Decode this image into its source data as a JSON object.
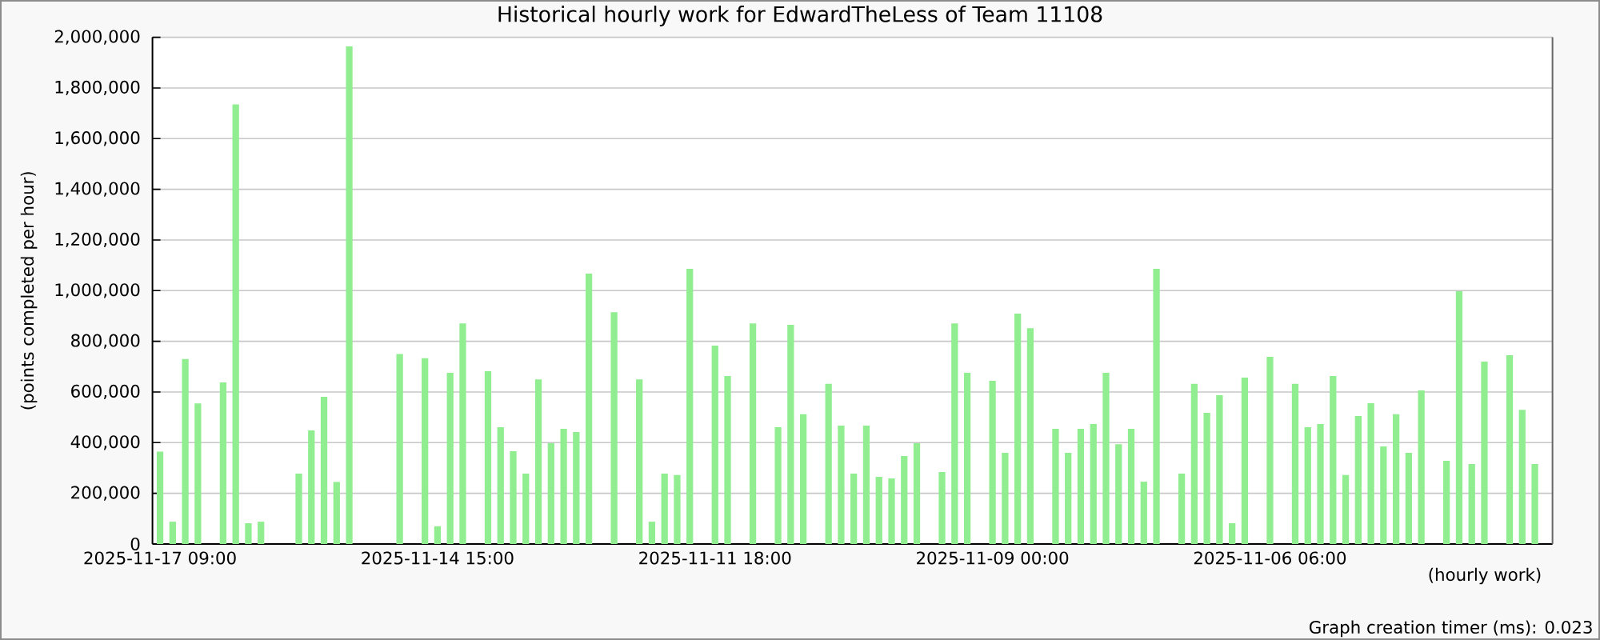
{
  "chart_data": {
    "type": "bar",
    "title": "Historical hourly work for EdwardTheLess of Team 11108",
    "xlabel": "(hourly work)",
    "ylabel": "(points completed per hour)",
    "annotations": [
      "Graph creation timer (ms): 0.023"
    ],
    "categories": [
      "2025-11-17 09:00",
      null,
      null,
      null,
      null,
      null,
      null,
      null,
      null,
      null,
      null,
      null,
      null,
      null,
      null,
      null,
      null,
      null,
      null,
      null,
      null,
      null,
      "2025-11-14 15:00",
      null,
      null,
      null,
      null,
      null,
      null,
      null,
      null,
      null,
      null,
      null,
      null,
      null,
      null,
      null,
      null,
      null,
      null,
      null,
      null,
      null,
      "2025-11-11 18:00",
      null,
      null,
      null,
      null,
      null,
      null,
      null,
      null,
      null,
      null,
      null,
      null,
      null,
      null,
      null,
      null,
      null,
      null,
      null,
      null,
      null,
      "2025-11-09 00:00",
      null,
      null,
      null,
      null,
      null,
      null,
      null,
      null,
      null,
      null,
      null,
      null,
      null,
      null,
      null,
      null,
      null,
      null,
      null,
      null,
      null,
      "2025-11-06 06:00",
      null,
      null,
      null,
      null,
      null,
      null,
      null,
      null,
      null,
      null,
      null,
      null,
      null,
      null,
      null,
      null,
      null,
      null,
      null,
      null,
      null
    ],
    "values": [
      365000,
      88000,
      730000,
      555000,
      null,
      638000,
      1735000,
      82000,
      88000,
      null,
      null,
      278000,
      448000,
      581000,
      245000,
      1964000,
      null,
      null,
      null,
      750000,
      null,
      733000,
      70000,
      676000,
      871000,
      null,
      682000,
      461000,
      366000,
      278000,
      650000,
      398000,
      455000,
      442000,
      1067000,
      null,
      915000,
      null,
      650000,
      88000,
      278000,
      272000,
      1086000,
      null,
      783000,
      663000,
      null,
      871000,
      null,
      461000,
      865000,
      512000,
      null,
      632000,
      467000,
      278000,
      467000,
      265000,
      259000,
      347000,
      398000,
      null,
      284000,
      871000,
      676000,
      null,
      644000,
      360000,
      909000,
      852000,
      null,
      455000,
      360000,
      455000,
      474000,
      676000,
      394000,
      455000,
      246000,
      1086000,
      null,
      278000,
      632000,
      518000,
      587000,
      82000,
      657000,
      null,
      739000,
      null,
      632000,
      461000,
      474000,
      663000,
      272000,
      505000,
      556000,
      385000,
      512000,
      360000,
      606000,
      null,
      328000,
      998000,
      316000,
      720000,
      null,
      745000,
      530000,
      316000
    ],
    "color": "#90ee90",
    "ylim": [
      0,
      2000000
    ],
    "yticks": [
      0,
      {
        "value": 200000,
        "label": "200,000"
      },
      {
        "value": 400000,
        "label": "400,000"
      },
      {
        "value": 600000,
        "label": "600,000"
      },
      {
        "value": 800000,
        "label": "800,000"
      },
      {
        "value": 1000000,
        "label": "1,000,000"
      },
      {
        "value": 1200000,
        "label": "1,200,000"
      },
      {
        "value": 1400000,
        "label": "1,400,000"
      },
      {
        "value": 1600000,
        "label": "1,600,000"
      },
      {
        "value": 1800000,
        "label": "1,800,000"
      },
      {
        "value": 2000000,
        "label": "2,000,000"
      }
    ],
    "grid": "y"
  }
}
